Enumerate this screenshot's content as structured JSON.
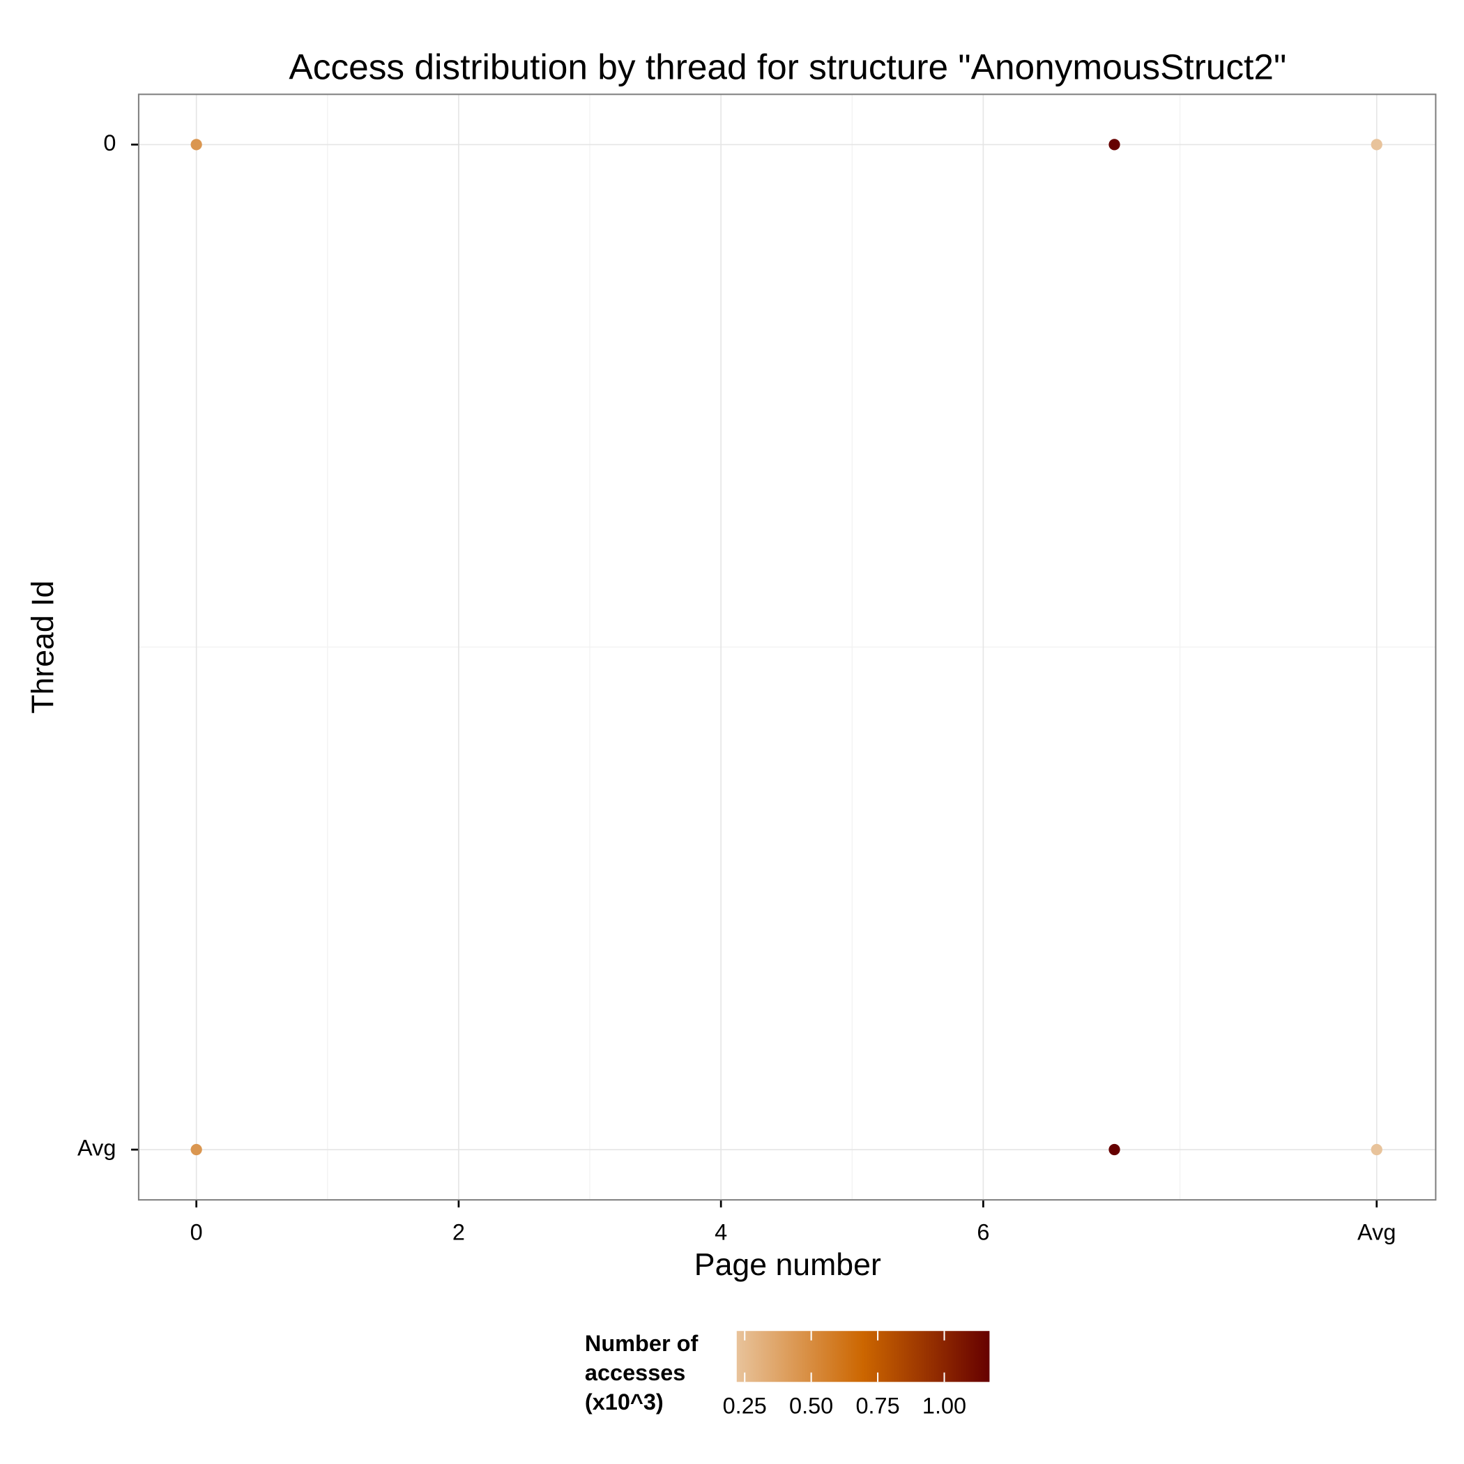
{
  "chart_data": {
    "type": "scatter",
    "title": "Access distribution by thread for structure \"AnonymousStruct2\"",
    "x_label": "Page number",
    "y_label": "Thread Id",
    "x": [
      0,
      7,
      9,
      0,
      7,
      9
    ],
    "y": [
      0,
      0,
      0,
      -1,
      -1,
      -1
    ],
    "values": [
      0.45,
      1.17,
      0.22,
      0.45,
      1.17,
      0.22
    ],
    "xlim": [
      -0.44,
      9.45
    ],
    "ylim": [
      -1.05,
      0.05
    ],
    "xticks": [
      0,
      2,
      4,
      6,
      {
        "value": 9,
        "label": "Avg"
      }
    ],
    "yticks": [
      {
        "value": -1,
        "label": "Avg"
      },
      0
    ],
    "grid": true,
    "colorbar": {
      "title": [
        "Number of",
        "accesses",
        "(x10^3)"
      ],
      "lim": [
        0.22,
        1.17
      ],
      "ticks": [
        0.25,
        {
          "value": 0.5,
          "label": "0.50"
        },
        0.75,
        {
          "value": 1,
          "label": "1.00"
        }
      ],
      "colors": [
        "#e8c39b",
        "#cc6600",
        "#660000"
      ],
      "position": "bottom"
    }
  }
}
